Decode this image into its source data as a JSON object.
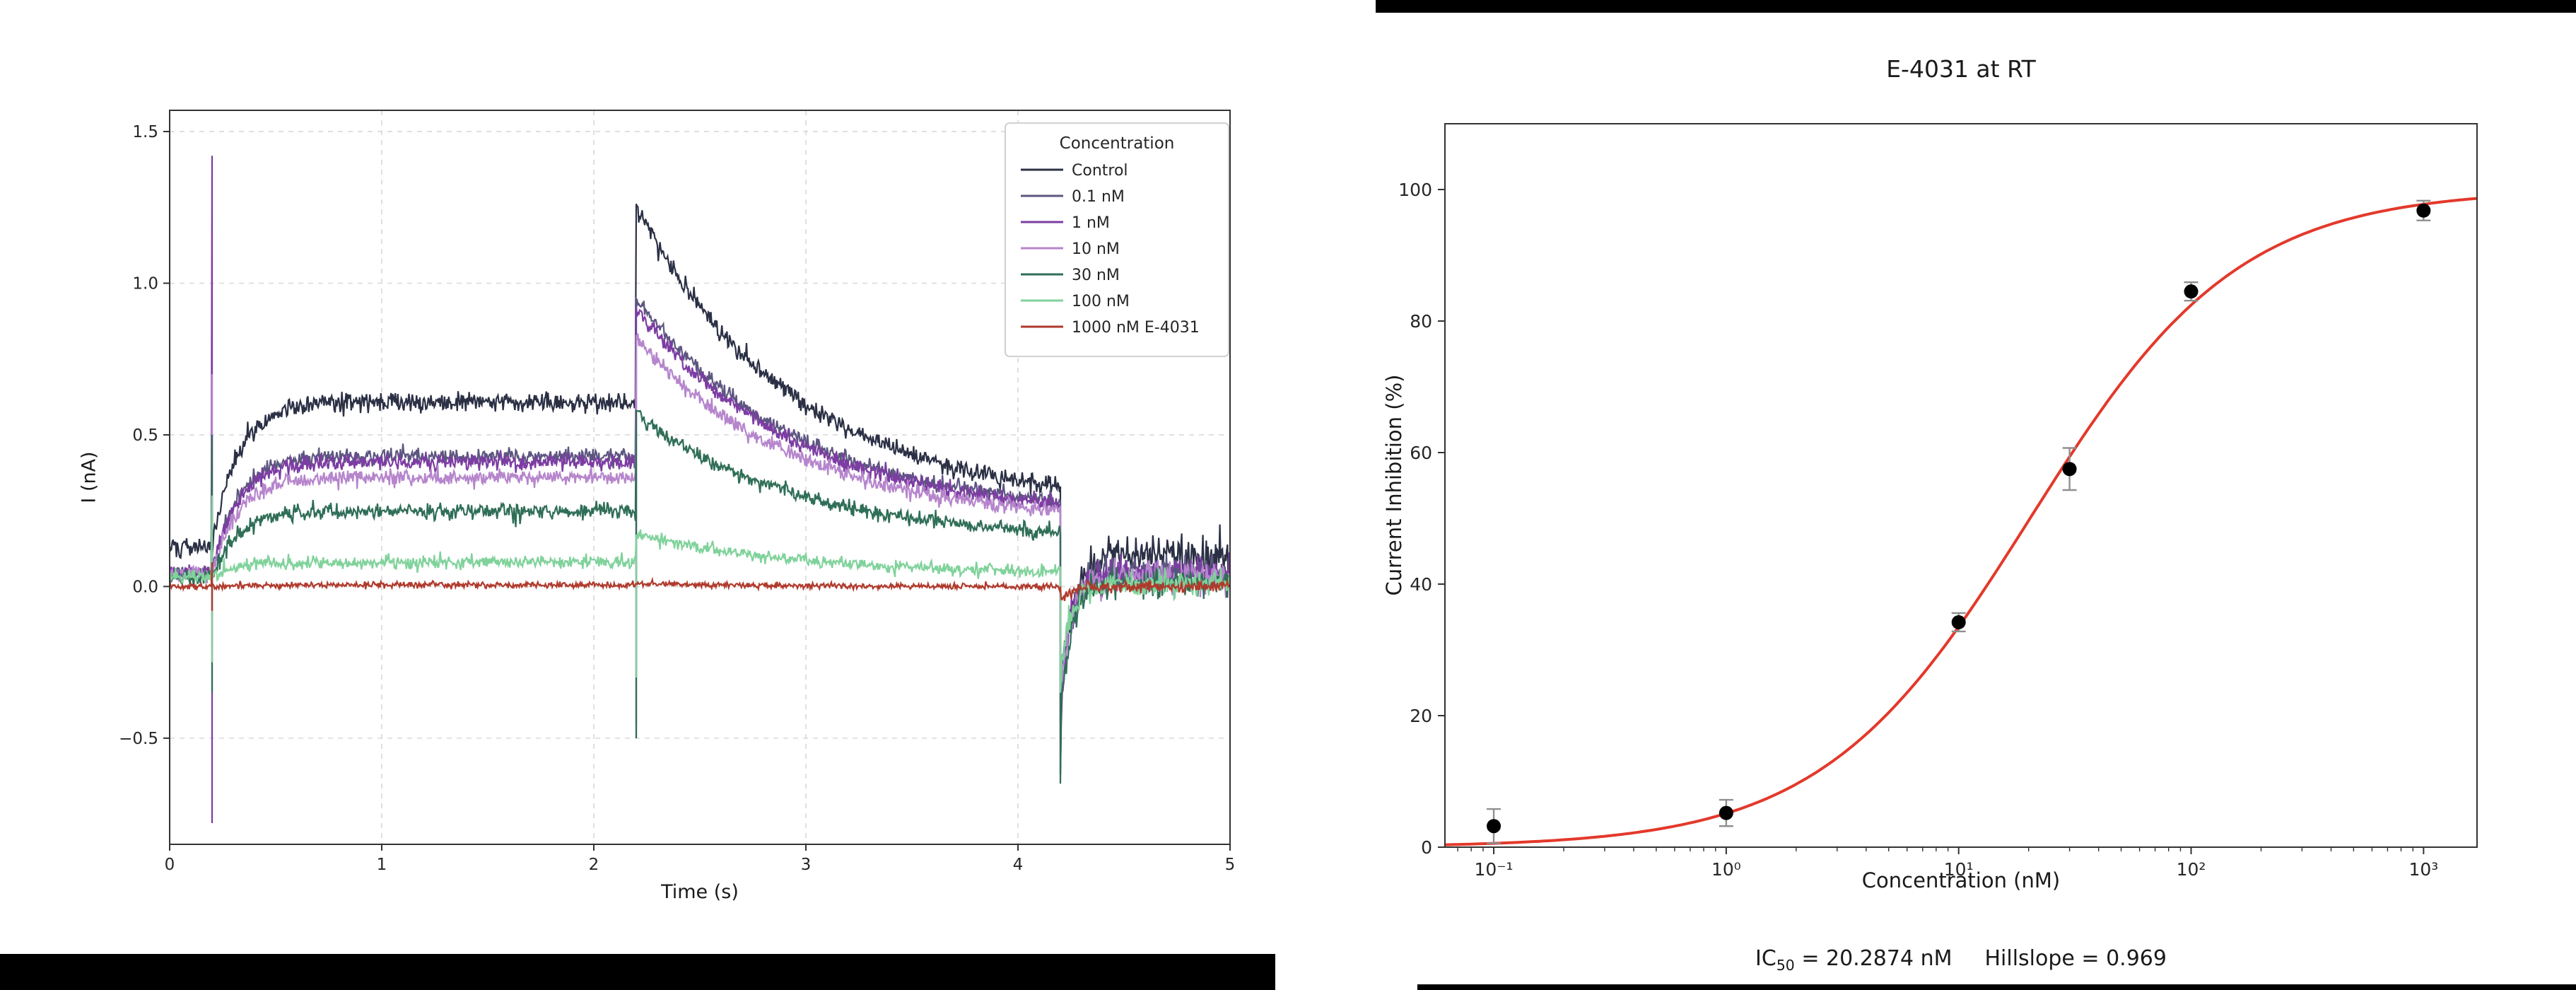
{
  "page": {
    "background": "#ffffff",
    "bar_color": "#000000"
  },
  "chart_data": [
    {
      "type": "line",
      "subtype": "current-traces",
      "title": "",
      "xlabel": "Time (s)",
      "ylabel": "I (nA)",
      "xlim": [
        0,
        5
      ],
      "ylim": [
        -0.85,
        1.57
      ],
      "xticks": [
        0,
        1,
        2,
        3,
        4,
        5
      ],
      "xtick_labels": [
        "0",
        "1",
        "2",
        "3",
        "4",
        "5"
      ],
      "yticks": [
        -0.5,
        0.0,
        0.5,
        1.0,
        1.5
      ],
      "ytick_labels": [
        "−0.5",
        "0.0",
        "0.5",
        "1.0",
        "1.5"
      ],
      "grid": true,
      "grid_color": "#d9d9d9",
      "legend_title": "Concentration",
      "legend_position": "upper right",
      "protocol": {
        "step_start": 0.2,
        "step_end": 2.2,
        "sweep_end": 4.2,
        "trace_end": 5.0,
        "rise_tau": 0.12,
        "tail_tau": 0.75,
        "dip_tau": 0.05
      },
      "series": [
        {
          "label": "Control",
          "color": "#2b3045",
          "baseline": 0.13,
          "plateau": 0.61,
          "tail_peak": 1.25,
          "tail_end": 0.33,
          "post": 0.1,
          "post_dip": -0.55,
          "noise": 0.016,
          "spikes": {
            "t0": [
              0.3,
              0.05
            ],
            "t1": null,
            "t2": [
              0.33,
              -0.62
            ]
          }
        },
        {
          "label": "0.1 nM",
          "color": "#5d5680",
          "baseline": 0.05,
          "plateau": 0.43,
          "tail_peak": 0.95,
          "tail_end": 0.28,
          "post": 0.05,
          "post_dip": -0.4,
          "noise": 0.013,
          "spikes": {
            "t0": [
              0.5,
              -0.1
            ],
            "t1": [
              0.95,
              -0.3
            ],
            "t2": [
              0.0,
              -0.45
            ]
          }
        },
        {
          "label": "1 nM",
          "color": "#7d3ca3",
          "baseline": 0.05,
          "plateau": 0.41,
          "tail_peak": 0.92,
          "tail_end": 0.27,
          "post": 0.04,
          "post_dip": -0.45,
          "noise": 0.013,
          "spikes": {
            "t0": [
              1.42,
              -0.78
            ],
            "t1": [
              0.92,
              -0.5
            ],
            "t2": [
              0.0,
              -0.5
            ]
          }
        },
        {
          "label": "10 nM",
          "color": "#b685cc",
          "baseline": 0.04,
          "plateau": 0.36,
          "tail_peak": 0.82,
          "tail_end": 0.25,
          "post": 0.03,
          "post_dip": -0.4,
          "noise": 0.013,
          "spikes": {
            "t0": [
              0.7,
              -0.2
            ],
            "t1": [
              0.82,
              -0.45
            ],
            "t2": [
              0.0,
              -0.45
            ]
          }
        },
        {
          "label": "30 nM",
          "color": "#2f6e57",
          "baseline": 0.03,
          "plateau": 0.25,
          "tail_peak": 0.57,
          "tail_end": 0.18,
          "post": 0.01,
          "post_dip": -0.45,
          "noise": 0.013,
          "spikes": {
            "t0": [
              0.5,
              -0.35
            ],
            "t1": [
              0.57,
              -0.5
            ],
            "t2": [
              0.0,
              -0.65
            ]
          }
        },
        {
          "label": "100 nM",
          "color": "#80d29b",
          "baseline": 0.03,
          "plateau": 0.08,
          "tail_peak": 0.17,
          "tail_end": 0.05,
          "post": 0.01,
          "post_dip": -0.3,
          "noise": 0.011,
          "spikes": {
            "t0": [
              0.3,
              -0.25
            ],
            "t1": [
              0.17,
              -0.3
            ],
            "t2": [
              0.0,
              -0.35
            ]
          }
        },
        {
          "label": "1000 nM E-4031",
          "color": "#b03a2c",
          "baseline": 0.0,
          "plateau": 0.005,
          "tail_peak": 0.01,
          "tail_end": 0.0,
          "post": 0.0,
          "post_dip": -0.05,
          "noise": 0.005,
          "spikes": {
            "t0": [
              0.08,
              -0.08
            ],
            "t1": null,
            "t2": null
          }
        }
      ]
    },
    {
      "type": "scatter",
      "subtype": "dose-response",
      "title": "E-4031 at RT",
      "xlabel": "Concentration (nM)",
      "ylabel": "Current Inhibition (%)",
      "xscale": "log",
      "xlim_log": [
        -1.21,
        3.23
      ],
      "ylim": [
        0,
        110
      ],
      "xticks": [
        0.1,
        1,
        10,
        100,
        1000
      ],
      "xtick_labels": [
        "10⁻¹",
        "10⁰",
        "10¹",
        "10²",
        "10³"
      ],
      "yticks": [
        0,
        20,
        40,
        60,
        80,
        100
      ],
      "ytick_labels": [
        "0",
        "20",
        "40",
        "60",
        "80",
        "100"
      ],
      "grid": false,
      "points": {
        "x": [
          0.1,
          1,
          10,
          30,
          100,
          1000
        ],
        "y": [
          3.2,
          5.2,
          34.2,
          57.5,
          84.5,
          96.8
        ],
        "yerr": [
          2.6,
          2.0,
          1.4,
          3.2,
          1.4,
          1.5
        ],
        "color": "#000000",
        "errorbar_color": "#8f8f8f"
      },
      "fit": {
        "model": "hill",
        "ic50": 20.2874,
        "hill": 0.969,
        "top": 100,
        "bottom": 0,
        "color": "#e3392b"
      },
      "annotation": {
        "ic_prefix": "IC",
        "ic_sub": "50",
        "ic_value": " = 20.2874 nM",
        "hillslope": "Hillslope = 0.969"
      }
    }
  ]
}
